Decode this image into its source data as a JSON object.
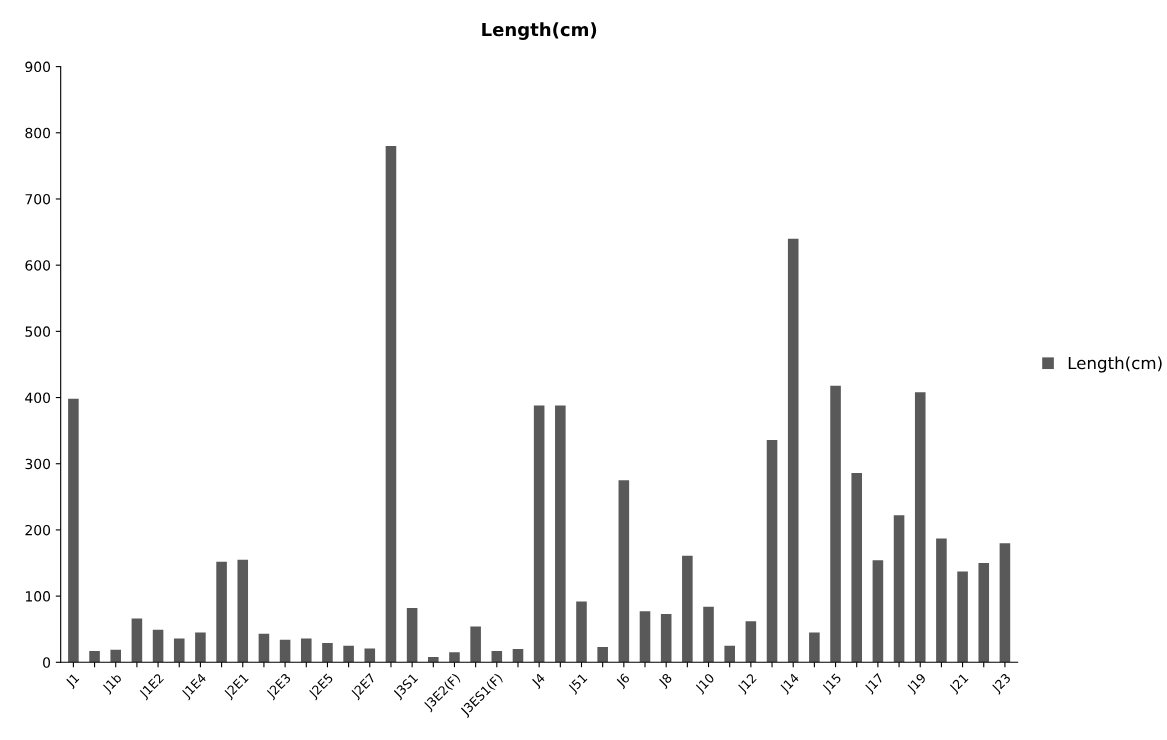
{
  "chart_data": {
    "type": "bar",
    "title": "Length(cm)",
    "categories": [
      "J1",
      null,
      "J1b",
      null,
      "J1E2",
      null,
      "J1E4",
      null,
      "J2E1",
      null,
      "J2E3",
      null,
      "J2E5",
      null,
      "J2E7",
      null,
      "J3S1",
      null,
      "J3E2(F)",
      null,
      "J3ES1(F)",
      null,
      "J4",
      null,
      "J51",
      null,
      "J6",
      null,
      "J8",
      null,
      "J10",
      null,
      "J12",
      null,
      "J14",
      null,
      "J15",
      null,
      "J17",
      null,
      "J19",
      null,
      "J21",
      null,
      "J23"
    ],
    "series": [
      {
        "name": "Length(cm)",
        "color": "#595959",
        "values": [
          398,
          17,
          19,
          66,
          49,
          36,
          45,
          152,
          155,
          43,
          34,
          36,
          29,
          25,
          21,
          780,
          82,
          8,
          15,
          54,
          17,
          20,
          388,
          388,
          92,
          23,
          275,
          77,
          73,
          161,
          84,
          25,
          62,
          336,
          640,
          45,
          418,
          286,
          154,
          222,
          408,
          187,
          137,
          150,
          180
        ]
      }
    ],
    "ylim": [
      0,
      900
    ],
    "yticks": [
      0,
      100,
      200,
      300,
      400,
      500,
      600,
      700,
      800,
      900
    ],
    "grid": false,
    "legend": "right"
  }
}
